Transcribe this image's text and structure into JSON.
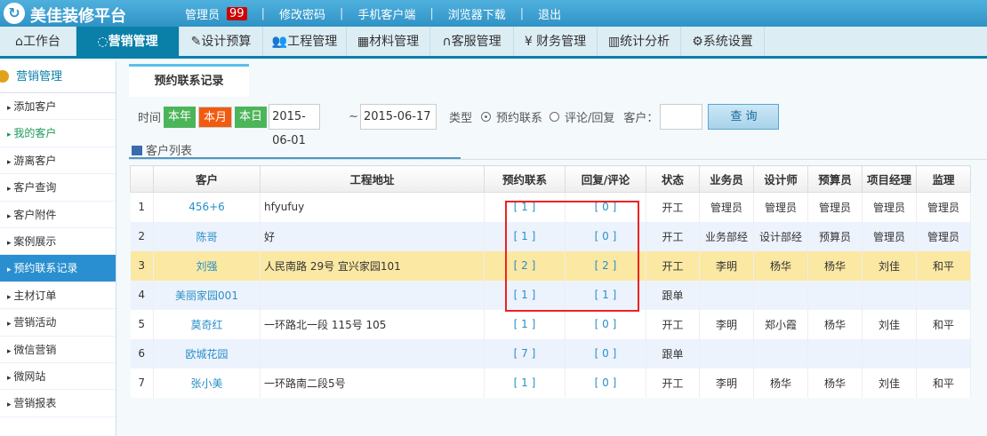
{
  "header": {
    "brand": "美佳装修平台",
    "user": "管理员",
    "badge": "99",
    "links": [
      "修改密码",
      "手机客户端",
      "浏览器下载",
      "退出"
    ]
  },
  "nav": [
    {
      "label": "工作台",
      "icon": "home-icon"
    },
    {
      "label": "营销管理",
      "icon": "chat-icon",
      "active": true
    },
    {
      "label": "设计预算",
      "icon": "edit-icon"
    },
    {
      "label": "工程管理",
      "icon": "users-icon"
    },
    {
      "label": "材料管理",
      "icon": "grid-icon"
    },
    {
      "label": "客服管理",
      "icon": "headset-icon"
    },
    {
      "label": "财务管理",
      "icon": "yen-icon"
    },
    {
      "label": "统计分析",
      "icon": "chart-icon"
    },
    {
      "label": "系统设置",
      "icon": "gear-icon"
    }
  ],
  "sidebar": {
    "title": "营销管理",
    "items": [
      "添加客户",
      "我的客户",
      "游离客户",
      "客户查询",
      "客户附件",
      "案例展示",
      "预约联系记录",
      "主材订单",
      "营销活动",
      "微信营销",
      "微网站",
      "营销报表"
    ],
    "active": "预约联系记录"
  },
  "tab": "预约联系记录",
  "filter": {
    "time_label": "时间",
    "year": "本年",
    "month": "本月",
    "day": "本日",
    "start": "2015-06-01",
    "tilde": "~",
    "end": "2015-06-17",
    "type_label": "类型",
    "opt1": "预约联系",
    "opt2": "评论/回复",
    "selected": "预约联系",
    "customer_label": "客户：",
    "customer_value": "",
    "query": "查 询"
  },
  "list_title": "客户列表",
  "table": {
    "headers": [
      "",
      "客户",
      "工程地址",
      "预约联系",
      "回复/评论",
      "状态",
      "业务员",
      "设计师",
      "预算员",
      "项目经理",
      "监理"
    ],
    "rows": [
      [
        "1",
        "456+6",
        "hfyufuy",
        "[ 1 ]",
        "[ 0 ]",
        "开工",
        "管理员",
        "管理员",
        "管理员",
        "管理员",
        "管理员"
      ],
      [
        "2",
        "陈哥",
        "好",
        "[ 1 ]",
        "[ 0 ]",
        "开工",
        "业务部经",
        "设计部经",
        "预算员",
        "管理员",
        "管理员"
      ],
      [
        "3",
        "刘强",
        "人民南路 29号 宜兴家园101",
        "[ 2 ]",
        "[ 2 ]",
        "开工",
        "李明",
        "杨华",
        "杨华",
        "刘佳",
        "和平"
      ],
      [
        "4",
        "美丽家园001",
        "",
        "[ 1 ]",
        "[ 1 ]",
        "跟单",
        "",
        "",
        "",
        "",
        ""
      ],
      [
        "5",
        "莫奇红",
        "一环路北一段 115号 105",
        "[ 1 ]",
        "[ 0 ]",
        "开工",
        "李明",
        "郑小霞",
        "杨华",
        "刘佳",
        "和平"
      ],
      [
        "6",
        "欧城花园",
        "",
        "[ 7 ]",
        "[ 0 ]",
        "跟单",
        "",
        "",
        "",
        "",
        ""
      ],
      [
        "7",
        "张小美",
        "一环路南二段5号",
        "[ 1 ]",
        "[ 0 ]",
        "开工",
        "李明",
        "杨华",
        "杨华",
        "刘佳",
        "和平"
      ]
    ]
  },
  "colors": {
    "header": "#2f93c6",
    "active_nav": "#0a7fa8",
    "highlight_row": "#fbe8a2",
    "annotation": "#e22222"
  }
}
